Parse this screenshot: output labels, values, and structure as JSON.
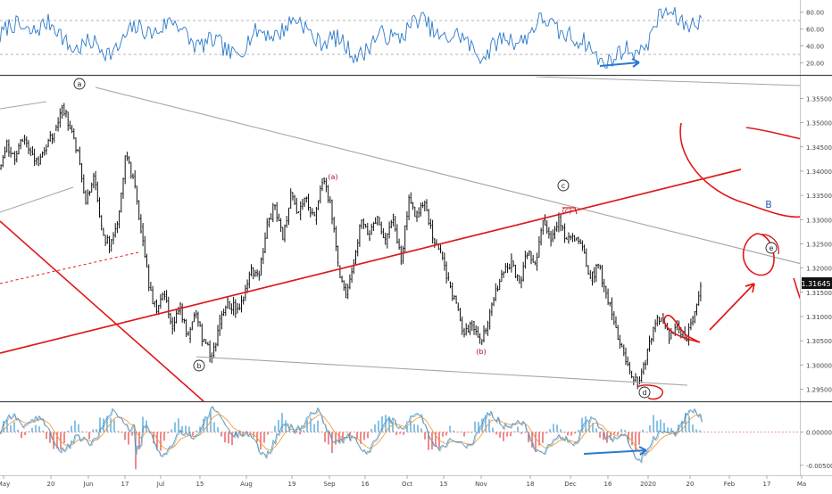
{
  "chart_data": [
    {
      "type": "line",
      "panel": "rsi",
      "y_ticks": [
        "80.00",
        "60.00",
        "40.00",
        "20.00"
      ],
      "ylim": [
        10,
        90
      ],
      "reference_levels": [
        70,
        30
      ],
      "series_color": "#2b79c9"
    },
    {
      "type": "candlestick",
      "panel": "price",
      "y_ticks": [
        "1.35500",
        "1.35000",
        "1.34500",
        "1.34000",
        "1.33500",
        "1.33000",
        "1.32500",
        "1.32000",
        "1.31500",
        "1.31000",
        "1.30500",
        "1.30000",
        "1.29500"
      ],
      "ylim": [
        1.2925,
        1.3595
      ],
      "last_price": "1.31645",
      "last_price_color": "#111111",
      "x_ticks": [
        "May",
        "20",
        "Jun",
        "17",
        "Jul",
        "15",
        "Aug",
        "19",
        "Sep",
        "16",
        "Oct",
        "15",
        "Nov",
        "18",
        "Dec",
        "16",
        "2020",
        "20",
        "Feb",
        "17",
        "Ma"
      ],
      "wave_labels": [
        "a",
        "b",
        "c",
        "d",
        "e",
        "(a)",
        "(b)",
        "(c)",
        "B"
      ],
      "close_path": [
        1.3405,
        1.3455,
        1.3425,
        1.347,
        1.344,
        1.3415,
        1.345,
        1.3485,
        1.3535,
        1.349,
        1.344,
        1.3335,
        1.339,
        1.328,
        1.3245,
        1.329,
        1.343,
        1.339,
        1.3285,
        1.316,
        1.311,
        1.3145,
        1.308,
        1.312,
        1.3055,
        1.3105,
        1.3045,
        1.302,
        1.3085,
        1.313,
        1.3115,
        1.314,
        1.32,
        1.3185,
        1.329,
        1.333,
        1.326,
        1.3355,
        1.331,
        1.3345,
        1.33,
        1.3385,
        1.334,
        1.3205,
        1.3145,
        1.321,
        1.33,
        1.327,
        1.3305,
        1.325,
        1.33,
        1.3215,
        1.3345,
        1.3305,
        1.3335,
        1.326,
        1.323,
        1.317,
        1.312,
        1.3065,
        1.309,
        1.3045,
        1.308,
        1.3155,
        1.319,
        1.3215,
        1.317,
        1.323,
        1.3205,
        1.33,
        1.326,
        1.3305,
        1.3255,
        1.326,
        1.3245,
        1.3175,
        1.3205,
        1.315,
        1.309,
        1.3035,
        1.2985,
        1.2965,
        1.301,
        1.3075,
        1.3105,
        1.3055,
        1.3085,
        1.305,
        1.309,
        1.3164
      ],
      "series_color": "#111111"
    },
    {
      "type": "bar",
      "panel": "macd",
      "y_ticks": [
        "0.00000",
        "-0.00500"
      ],
      "ylim": [
        -0.0065,
        0.0045
      ],
      "histogram_up_color": "#3a9bd9",
      "histogram_down_color": "#e34040",
      "macd_line_color": "#3a9bd9",
      "signal_line_color": "#f0962b"
    }
  ],
  "colors": {
    "wave_label_black": "#222222",
    "wave_label_red": "#b0102a",
    "wave_label_blue": "#1e5fb3",
    "annotation_red": "#e01919",
    "annotation_blue": "#2a79d1",
    "trendline_gray": "#9a9a9a"
  }
}
